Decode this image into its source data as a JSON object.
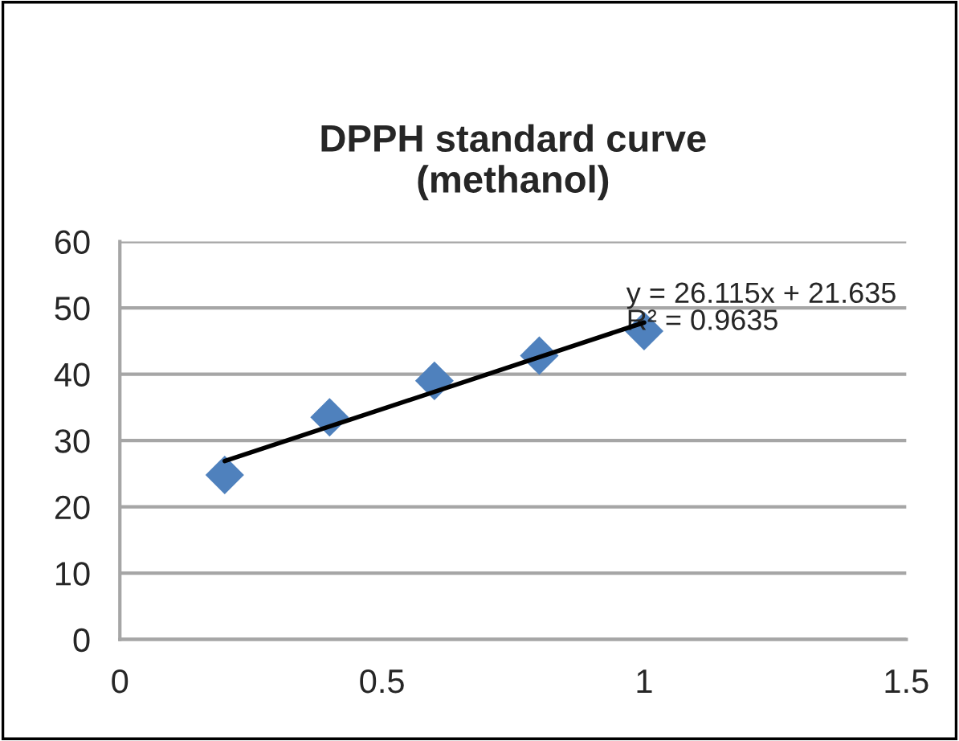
{
  "chart_data": {
    "type": "scatter",
    "title": "DPPH standard curve\n(methanol)",
    "x": [
      0.2,
      0.4,
      0.6,
      0.8,
      1.0
    ],
    "series": [
      {
        "color": "#4f81bd",
        "marker": "diamond",
        "values": [
          24.8,
          33.5,
          39.0,
          42.8,
          46.5
        ]
      },
      {
        "type": "line",
        "color": "#000000",
        "marker": "none",
        "line_style": "solid",
        "x": [
          0.2,
          1.0
        ],
        "values": [
          26.9,
          47.8
        ]
      }
    ],
    "annotations": [
      {
        "text": "y = 26.115x + 21.635\nR² = 0.9635",
        "x": 1.0,
        "y": 47.8
      }
    ],
    "xlim": [
      0,
      1.5
    ],
    "xticks": [
      0,
      0.5,
      1,
      1.5
    ],
    "ylim": [
      0,
      60
    ],
    "yticks": [
      0,
      10,
      20,
      30,
      40,
      50,
      60
    ],
    "grid": "y",
    "legend": false
  }
}
